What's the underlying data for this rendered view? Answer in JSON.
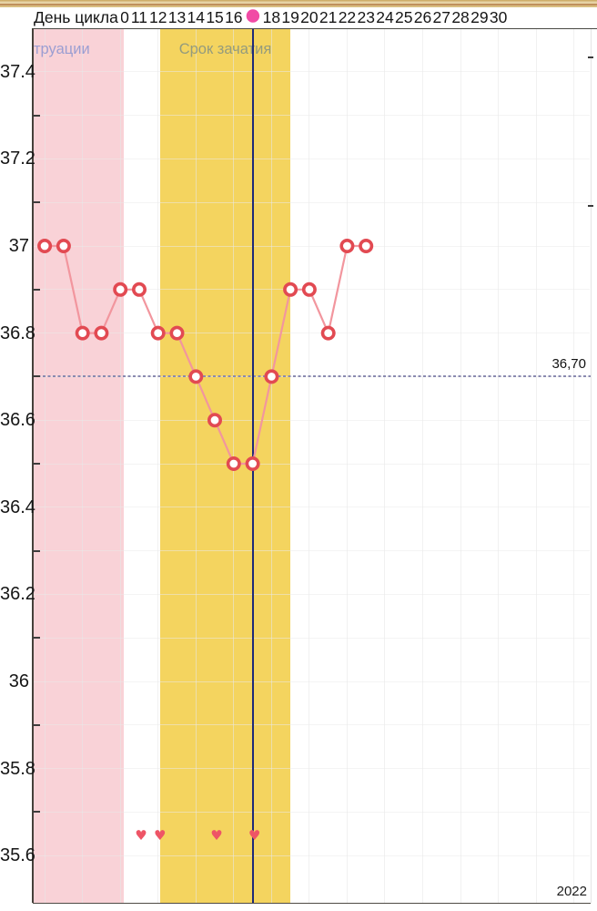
{
  "header": {
    "title": "День цикла"
  },
  "colors": {
    "menstruation_band": "#F9D2D7",
    "conception_band": "#F4D45F",
    "series_line": "#F2969E",
    "point_ring": "#E24A52",
    "point_fill": "#FFFFFF",
    "current_day_line": "#1E2A78",
    "current_day_dot": "#F14BA5",
    "coverline": "#8A8AB0",
    "heart": "#EE5566",
    "band_label_menstruation": "#9FA3D6",
    "band_label_conception": "#8FA08F",
    "top_bar": "#D7BC80"
  },
  "chart_data": {
    "type": "line",
    "title": "День цикла",
    "x_axis": {
      "label_days": [
        10,
        11,
        12,
        13,
        14,
        15,
        16,
        17,
        18,
        19,
        20,
        21,
        22,
        23,
        24,
        25,
        26,
        27,
        28,
        29,
        30
      ],
      "current_day": 17,
      "grid_step_days": 2
    },
    "y_axis": {
      "tick_labels": [
        "37.4",
        "37.2",
        "37",
        "36.8",
        "36.6",
        "36.4",
        "36.2",
        "36",
        "35.8",
        "35.6"
      ],
      "minor_ticks": [
        37.3,
        37.1,
        36.9,
        36.7,
        36.5,
        36.3,
        36.1,
        35.9,
        35.7
      ],
      "grid_values": [
        37.4,
        37.3,
        37.2,
        37.1,
        37.0,
        36.9,
        36.8,
        36.7,
        36.6,
        36.5,
        36.4,
        36.3,
        36.2,
        36.1,
        36.0,
        35.9,
        35.8,
        35.7,
        35.6
      ],
      "range": [
        35.5,
        37.45
      ]
    },
    "series": [
      {
        "name": "basal-temperature",
        "points": [
          {
            "day": 6,
            "temp": 37.0
          },
          {
            "day": 7,
            "temp": 37.0
          },
          {
            "day": 8,
            "temp": 36.8
          },
          {
            "day": 9,
            "temp": 36.8
          },
          {
            "day": 10,
            "temp": 36.9
          },
          {
            "day": 11,
            "temp": 36.9
          },
          {
            "day": 12,
            "temp": 36.8
          },
          {
            "day": 13,
            "temp": 36.8
          },
          {
            "day": 14,
            "temp": 36.7
          },
          {
            "day": 15,
            "temp": 36.6
          },
          {
            "day": 16,
            "temp": 36.5
          },
          {
            "day": 17,
            "temp": 36.5
          },
          {
            "day": 18,
            "temp": 36.7
          },
          {
            "day": 19,
            "temp": 36.9
          },
          {
            "day": 20,
            "temp": 36.9
          },
          {
            "day": 21,
            "temp": 36.8
          },
          {
            "day": 22,
            "temp": 37.0
          },
          {
            "day": 23,
            "temp": 37.0
          }
        ]
      }
    ],
    "bands": [
      {
        "name": "menstruation",
        "label": "труации",
        "day_start": 5.35,
        "day_end": 10.2
      },
      {
        "name": "conception",
        "label": "Срок зачатия",
        "day_start": 12.13,
        "day_end": 19.0
      }
    ],
    "coverline": {
      "value": 36.7,
      "label": "36,70"
    },
    "intercourse_days": [
      11,
      12,
      15,
      17
    ],
    "year_label": "2022",
    "grid": true,
    "legend": false
  }
}
